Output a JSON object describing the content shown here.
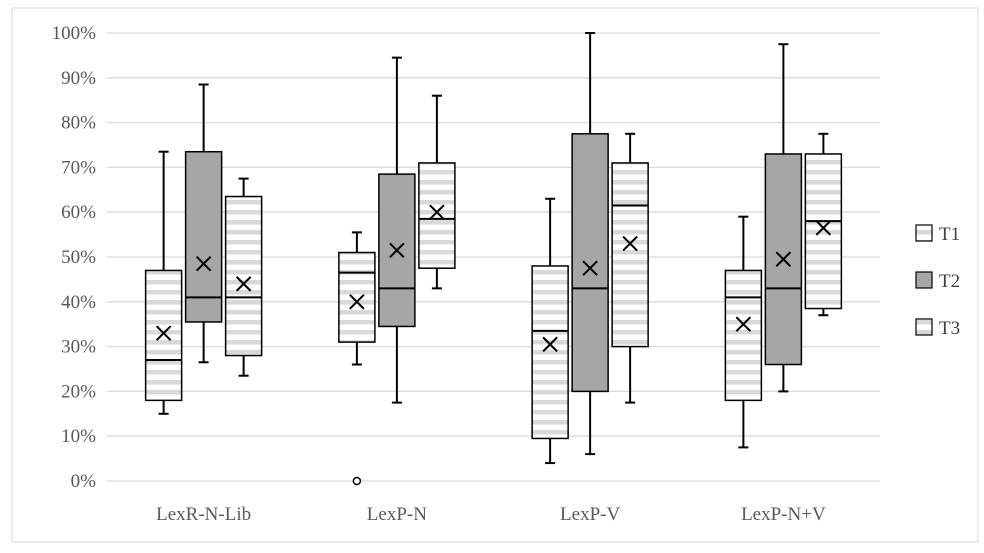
{
  "chart_data": {
    "type": "boxplot",
    "y_ticks": [
      "0%",
      "10%",
      "20%",
      "30%",
      "40%",
      "50%",
      "60%",
      "70%",
      "80%",
      "90%",
      "100%"
    ],
    "ylim": [
      0,
      100
    ],
    "grid": true,
    "legend_placement": "right",
    "categories": [
      "LexR-N-Lib",
      "LexP-N",
      "LexP-V",
      "LexP-N+V"
    ],
    "series": [
      {
        "name": "T1",
        "color": "#ffffff",
        "pattern": "horizontal-stripes",
        "boxes": [
          {
            "min": 15,
            "q1": 18,
            "median": 27,
            "q3": 47,
            "max": 73.5,
            "mean": 33,
            "outliers": []
          },
          {
            "min": 26,
            "q1": 31,
            "median": 46.5,
            "q3": 51,
            "max": 55.5,
            "mean": 40,
            "outliers": [
              0
            ]
          },
          {
            "min": 4,
            "q1": 9.5,
            "median": 33.5,
            "q3": 48,
            "max": 63,
            "mean": 30.5,
            "outliers": []
          },
          {
            "min": 7.5,
            "q1": 18,
            "median": 41,
            "q3": 47,
            "max": 59,
            "mean": 35,
            "outliers": []
          }
        ]
      },
      {
        "name": "T2",
        "color": "#a6a6a6",
        "pattern": "solid",
        "boxes": [
          {
            "min": 26.5,
            "q1": 35.5,
            "median": 41,
            "q3": 73.5,
            "max": 88.5,
            "mean": 48.5,
            "outliers": []
          },
          {
            "min": 17.5,
            "q1": 34.5,
            "median": 43,
            "q3": 68.5,
            "max": 94.5,
            "mean": 51.5,
            "outliers": []
          },
          {
            "min": 6,
            "q1": 20,
            "median": 43,
            "q3": 77.5,
            "max": 100,
            "mean": 47.5,
            "outliers": []
          },
          {
            "min": 20,
            "q1": 26,
            "median": 43,
            "q3": 73,
            "max": 97.5,
            "mean": 49.5,
            "outliers": []
          }
        ]
      },
      {
        "name": "T3",
        "color": "#ffffff",
        "pattern": "horizontal-stripes",
        "boxes": [
          {
            "min": 23.5,
            "q1": 28,
            "median": 41,
            "q3": 63.5,
            "max": 67.5,
            "mean": 44,
            "outliers": []
          },
          {
            "min": 43,
            "q1": 47.5,
            "median": 58.5,
            "q3": 71,
            "max": 86,
            "mean": 60,
            "outliers": []
          },
          {
            "min": 17.5,
            "q1": 30,
            "median": 61.5,
            "q3": 71,
            "max": 77.5,
            "mean": 53,
            "outliers": []
          },
          {
            "min": 37,
            "q1": 38.5,
            "median": 58,
            "q3": 73,
            "max": 77.5,
            "mean": 56.5,
            "outliers": []
          }
        ]
      }
    ]
  }
}
